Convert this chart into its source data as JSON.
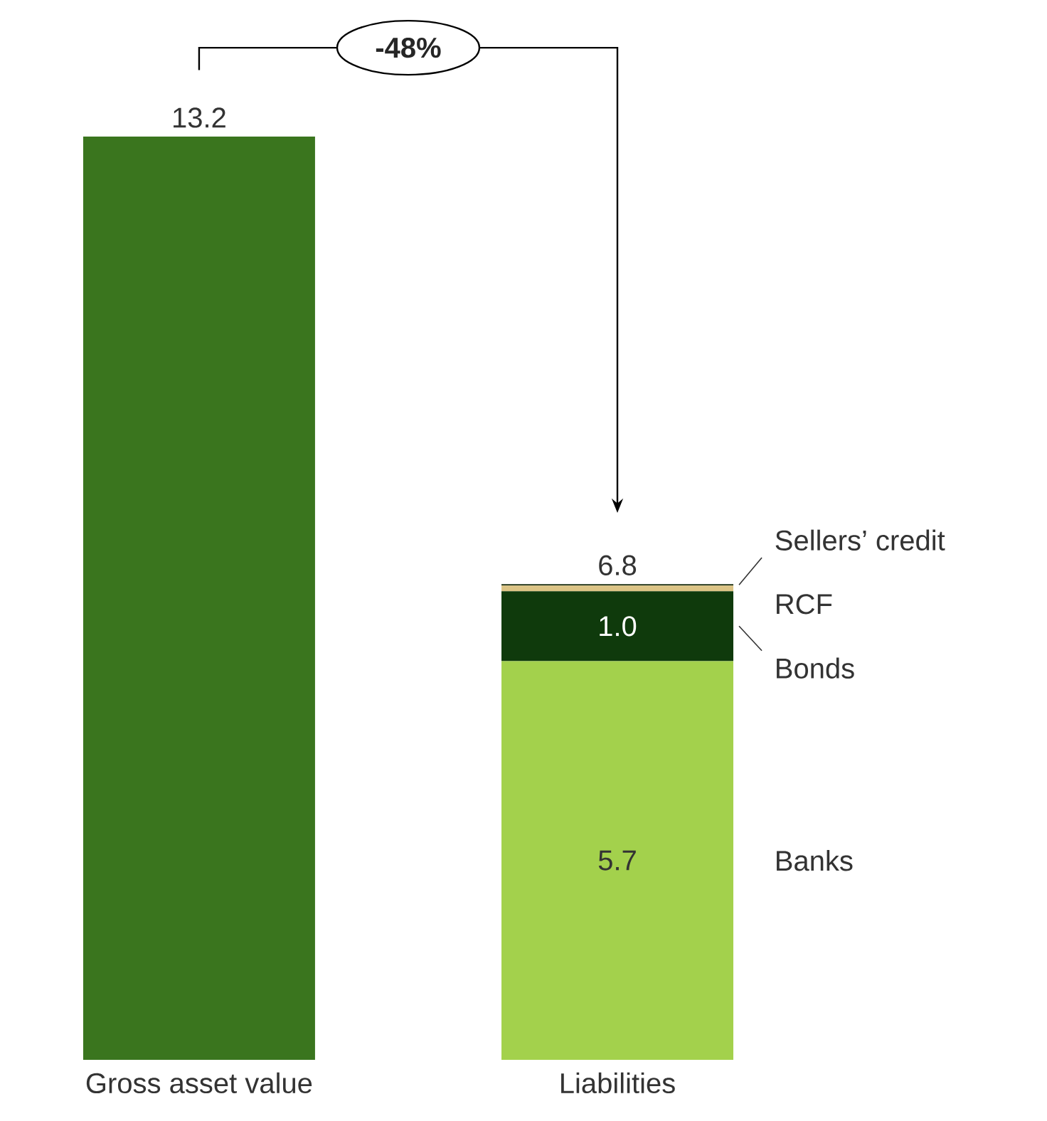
{
  "chart_data": {
    "type": "bar",
    "stacked": true,
    "categories": [
      "Gross asset value",
      "Liabilities"
    ],
    "series": [
      {
        "color": "#3a751e",
        "values": [
          13.2,
          null
        ],
        "value_labels": [
          "13.2",
          null
        ]
      },
      {
        "name": "Banks",
        "color": "#a3d14c",
        "values": [
          null,
          5.7
        ],
        "value_labels": [
          null,
          "5.7"
        ]
      },
      {
        "name": "Bonds",
        "color": "#0f3a0c",
        "values": [
          null,
          1.0
        ],
        "value_labels": [
          null,
          "1.0"
        ]
      },
      {
        "name": "RCF",
        "color": "#dcc485",
        "values": [
          null,
          0.08
        ],
        "value_labels": [
          null,
          null
        ]
      },
      {
        "name": "Sellers’ credit",
        "color": "#1a2e10",
        "values": [
          null,
          0.02
        ],
        "value_labels": [
          null,
          null
        ]
      }
    ],
    "totals": [
      null,
      "6.8"
    ],
    "annotations": [
      "-48%"
    ]
  }
}
